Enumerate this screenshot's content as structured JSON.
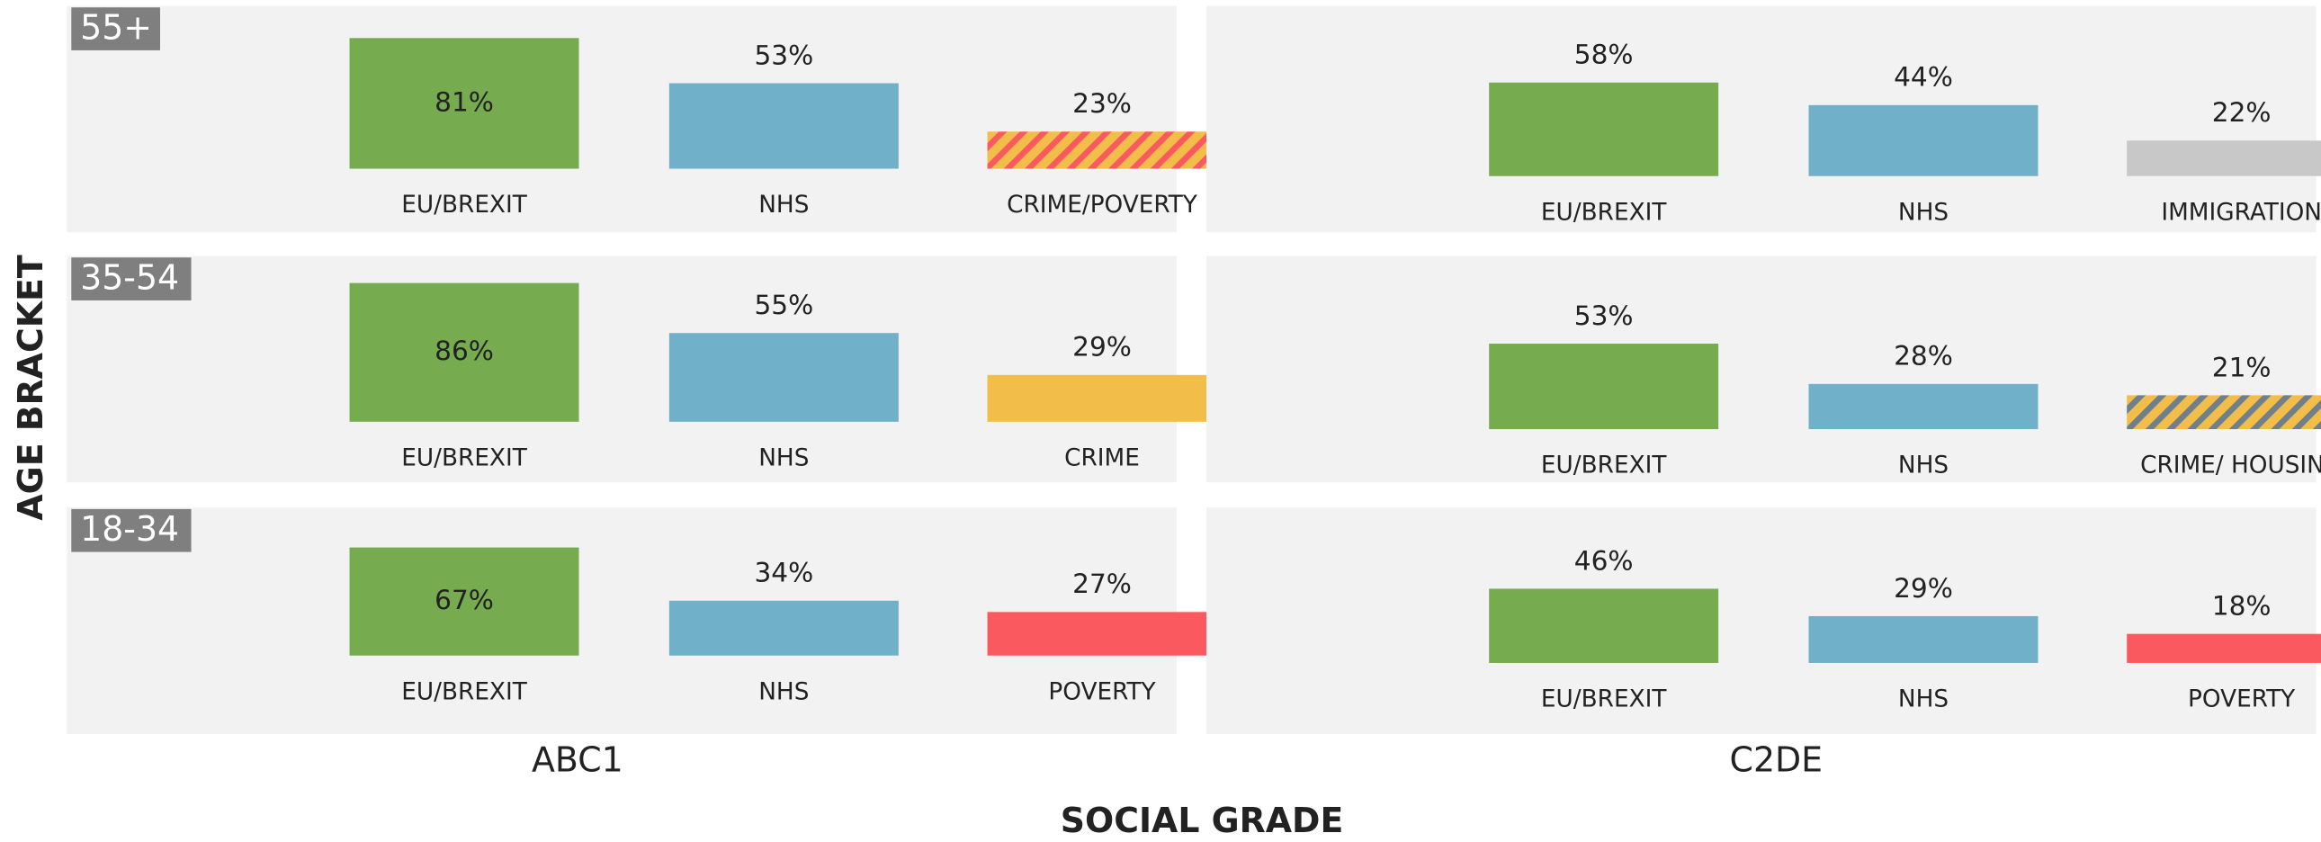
{
  "chart_data": {
    "type": "bar-grid",
    "y_title": "AGE BRACKET",
    "x_title": "SOCIAL GRADE",
    "row_labels": [
      "55+",
      "35-54",
      "18-34"
    ],
    "column_labels": [
      "ABC1",
      "C2DE"
    ],
    "panels": [
      {
        "type": "bar",
        "row": 0,
        "column": 0,
        "categories": [
          "EU/BREXIT",
          "NHS",
          "CRIME/POVERTY"
        ],
        "values": [
          81,
          53,
          23
        ],
        "value_labels": [
          "81%",
          "53%",
          "23%"
        ],
        "colors": [
          "#76ab50",
          "#70b0c8",
          [
            "#f2bd49",
            "#fa5a5f"
          ]
        ]
      },
      {
        "type": "bar",
        "row": 0,
        "column": 1,
        "categories": [
          "EU/BREXIT",
          "NHS",
          "IMMIGRATION"
        ],
        "values": [
          58,
          44,
          22
        ],
        "value_labels": [
          "58%",
          "44%",
          "22%"
        ],
        "colors": [
          "#76ab50",
          "#70b0c8",
          "#c8c8c8"
        ]
      },
      {
        "type": "bar",
        "row": 1,
        "column": 0,
        "categories": [
          "EU/BREXIT",
          "NHS",
          "CRIME"
        ],
        "values": [
          86,
          55,
          29
        ],
        "value_labels": [
          "86%",
          "55%",
          "29%"
        ],
        "colors": [
          "#76ab50",
          "#70b0c8",
          "#f2bd49"
        ]
      },
      {
        "type": "bar",
        "row": 1,
        "column": 1,
        "categories": [
          "EU/BREXIT",
          "NHS",
          "CRIME/ HOUSING"
        ],
        "values": [
          53,
          28,
          21
        ],
        "value_labels": [
          "53%",
          "28%",
          "21%"
        ],
        "colors": [
          "#76ab50",
          "#70b0c8",
          [
            "#f2bd49",
            "#6f7f8c"
          ]
        ]
      },
      {
        "type": "bar",
        "row": 2,
        "column": 0,
        "categories": [
          "EU/BREXIT",
          "NHS",
          "POVERTY"
        ],
        "values": [
          67,
          34,
          27
        ],
        "value_labels": [
          "67%",
          "34%",
          "27%"
        ],
        "colors": [
          "#76ab50",
          "#70b0c8",
          "#fa5a5f"
        ]
      },
      {
        "type": "bar",
        "row": 2,
        "column": 1,
        "categories": [
          "EU/BREXIT",
          "NHS",
          "POVERTY"
        ],
        "values": [
          46,
          29,
          18
        ],
        "value_labels": [
          "46%",
          "29%",
          "18%"
        ],
        "colors": [
          "#76ab50",
          "#70b0c8",
          "#fa5a5f"
        ]
      }
    ]
  }
}
